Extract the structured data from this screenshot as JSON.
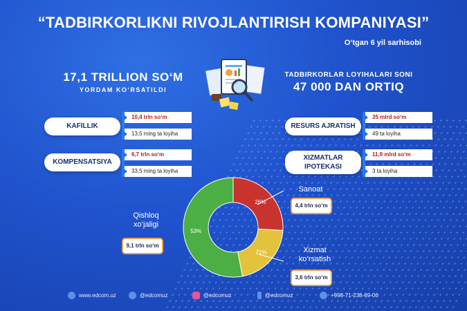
{
  "title": "“TADBIRKORLIKNI RIVOJLANTIRISH KOMPANIYASI”",
  "subtitle": "O‘tgan 6 yil sarhisobi",
  "left_stat": {
    "value": "17,1 TRILLION SO‘M",
    "caption": "YORDAM KO‘RSATILDI"
  },
  "right_stat": {
    "caption": "TADBIRKORLAR LOYIHALARI SONI",
    "value": "47 000 DAN ORTIQ"
  },
  "services": {
    "kafillik": {
      "label": "KAFILLIK",
      "amount": "10,4 trln so‘m",
      "projects": "13,5 ming ta loyiha"
    },
    "kompensatsiya": {
      "label": "KOMPENSATSIYA",
      "amount": "6,7 trln so‘m",
      "projects": "33,5 ming ta loyiha"
    },
    "resurs": {
      "label": "RESURS AJRATISH",
      "amount": "35 mlrd so‘m",
      "projects": "49 ta loyiha"
    },
    "ipoteka": {
      "label_1": "XIZMATLAR",
      "label_2": "IPOTEKASI",
      "amount": "11,9 mlrd so‘m",
      "projects": "3 ta loyiha"
    }
  },
  "chart_data": {
    "type": "pie",
    "donut": true,
    "slices": [
      {
        "name": "Qishloq xo‘jaligi",
        "percent": 53,
        "label": "53%",
        "amount": "9,1 trln so‘m",
        "color": "#4caf45"
      },
      {
        "name": "Sanoat",
        "percent": 26,
        "label": "26%",
        "amount": "4,4 trln so‘m",
        "color": "#c8332e"
      },
      {
        "name": "Xizmat ko‘rsatish",
        "percent": 21,
        "label": "21%",
        "amount": "3,6 trln so‘m",
        "color": "#e3c23c"
      }
    ],
    "labels": {
      "agri_1": "Qishloq",
      "agri_2": "xo‘jaligi",
      "sanoat": "Sanoat",
      "xizmat_1": "Xizmat",
      "xizmat_2": "ko‘rsatish"
    }
  },
  "footer": {
    "web": "www.edcom.uz",
    "telegram": "@edcomuz",
    "instagram": "@edcomuz",
    "facebook": "@edcomuz",
    "phone": "+998-71-238-69-06",
    "icons": [
      "globe-icon",
      "telegram-icon",
      "instagram-icon",
      "facebook-icon",
      "phone-icon"
    ]
  }
}
